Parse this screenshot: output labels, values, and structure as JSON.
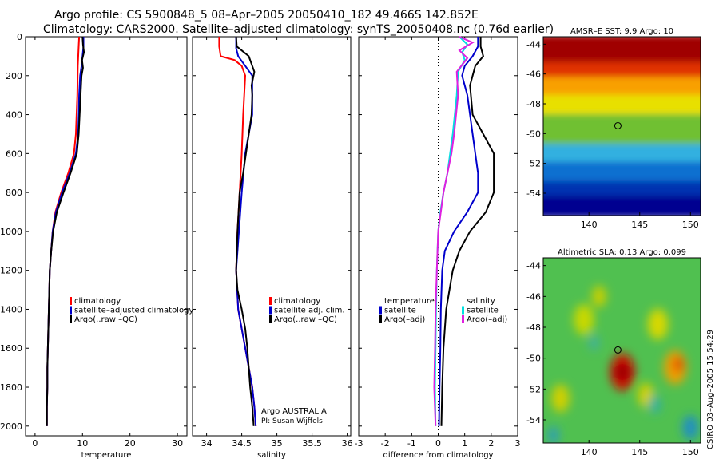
{
  "title": {
    "line1": "Argo profile: CS 5900848_5 08–Apr–2005 20050410_182 49.466S 142.852E",
    "line2": "Climatology: CARS2000. Satellite–adjusted climatology: synTS_20050408.nc (0.76d earlier)"
  },
  "colors": {
    "climatology": "#ff0000",
    "satellite": "#0000cc",
    "argo": "#000000",
    "sal_satellite": "#00e0e0",
    "sal_argo": "#e020e0",
    "zero_line": "#000000"
  },
  "credit": {
    "line1": "Argo AUSTRALIA",
    "line2": "PI: Susan Wijffels"
  },
  "timestamp": "CSIRO 03–Aug–2005 15:54:29",
  "chart_data": [
    {
      "type": "line",
      "xlabel": "temperature",
      "xlim": [
        -2,
        32
      ],
      "ylim": [
        2050,
        0
      ],
      "xticks": [
        0,
        10,
        20,
        30
      ],
      "yticks": [
        0,
        200,
        400,
        600,
        800,
        1000,
        1200,
        1400,
        1600,
        1800,
        2000
      ],
      "legend": [
        "climatology",
        "satellite–adjusted climatology",
        "Argo(..raw –QC)"
      ],
      "legend_position": "lower-right",
      "series": [
        {
          "name": "climatology",
          "color": "#ff0000",
          "points": [
            [
              9.3,
              0
            ],
            [
              9.2,
              50
            ],
            [
              9.0,
              150
            ],
            [
              8.9,
              300
            ],
            [
              8.6,
              500
            ],
            [
              8.2,
              600
            ],
            [
              7.0,
              700
            ],
            [
              5.5,
              800
            ],
            [
              4.3,
              900
            ],
            [
              3.7,
              1000
            ],
            [
              3.4,
              1100
            ],
            [
              3.1,
              1200
            ],
            [
              3.0,
              1300
            ],
            [
              2.9,
              1400
            ],
            [
              2.8,
              1500
            ],
            [
              2.7,
              1600
            ],
            [
              2.6,
              1700
            ],
            [
              2.6,
              1800
            ],
            [
              2.5,
              1900
            ],
            [
              2.5,
              2000
            ]
          ]
        },
        {
          "name": "satellite–adjusted climatology",
          "color": "#0000cc",
          "points": [
            [
              10.2,
              0
            ],
            [
              10.2,
              50
            ],
            [
              10.0,
              100
            ],
            [
              9.8,
              150
            ],
            [
              9.5,
              200
            ],
            [
              9.3,
              300
            ],
            [
              9.1,
              500
            ],
            [
              8.6,
              600
            ],
            [
              7.3,
              700
            ],
            [
              5.7,
              800
            ],
            [
              4.4,
              900
            ],
            [
              3.7,
              1000
            ],
            [
              3.4,
              1100
            ],
            [
              3.1,
              1200
            ],
            [
              3.0,
              1300
            ],
            [
              2.9,
              1400
            ],
            [
              2.8,
              1500
            ],
            [
              2.7,
              1600
            ],
            [
              2.6,
              1700
            ],
            [
              2.6,
              1800
            ],
            [
              2.5,
              1900
            ],
            [
              2.5,
              2000
            ]
          ]
        },
        {
          "name": "Argo(..raw –QC)",
          "color": "#000000",
          "points": [
            [
              10.0,
              0
            ],
            [
              10.1,
              40
            ],
            [
              10.3,
              80
            ],
            [
              9.9,
              120
            ],
            [
              10.1,
              160
            ],
            [
              9.8,
              200
            ],
            [
              9.6,
              300
            ],
            [
              9.4,
              400
            ],
            [
              9.2,
              500
            ],
            [
              8.8,
              600
            ],
            [
              7.5,
              700
            ],
            [
              6.0,
              800
            ],
            [
              4.6,
              900
            ],
            [
              3.8,
              1000
            ],
            [
              3.4,
              1100
            ],
            [
              3.1,
              1200
            ],
            [
              3.0,
              1300
            ],
            [
              2.9,
              1400
            ],
            [
              2.8,
              1500
            ],
            [
              2.7,
              1600
            ],
            [
              2.6,
              1700
            ],
            [
              2.6,
              1800
            ],
            [
              2.5,
              1900
            ],
            [
              2.5,
              2000
            ]
          ]
        }
      ]
    },
    {
      "type": "line",
      "xlabel": "salinity",
      "xlim": [
        33.8,
        36.05
      ],
      "ylim": [
        2050,
        0
      ],
      "xticks": [
        34,
        34.5,
        35,
        35.5,
        36
      ],
      "yticks": [
        0,
        200,
        400,
        600,
        800,
        1000,
        1200,
        1400,
        1600,
        1800,
        2000
      ],
      "legend": [
        "climatology",
        "satellite adj. clim.",
        "Argo(..raw –QC)"
      ],
      "legend_position": "lower-right",
      "series": [
        {
          "name": "climatology",
          "color": "#ff0000",
          "points": [
            [
              34.18,
              0
            ],
            [
              34.18,
              50
            ],
            [
              34.2,
              100
            ],
            [
              34.4,
              120
            ],
            [
              34.5,
              150
            ],
            [
              34.55,
              200
            ],
            [
              34.52,
              400
            ],
            [
              34.5,
              600
            ],
            [
              34.47,
              800
            ],
            [
              34.44,
              1000
            ],
            [
              34.42,
              1200
            ],
            [
              34.45,
              1400
            ],
            [
              34.5,
              1500
            ],
            [
              34.55,
              1600
            ],
            [
              34.6,
              1700
            ],
            [
              34.65,
              1800
            ],
            [
              34.68,
              1900
            ],
            [
              34.7,
              2000
            ]
          ]
        },
        {
          "name": "satellite adj. clim.",
          "color": "#0000cc",
          "points": [
            [
              34.42,
              0
            ],
            [
              34.42,
              60
            ],
            [
              34.45,
              100
            ],
            [
              34.55,
              150
            ],
            [
              34.65,
              200
            ],
            [
              34.65,
              400
            ],
            [
              34.6,
              500
            ],
            [
              34.55,
              600
            ],
            [
              34.5,
              800
            ],
            [
              34.46,
              1000
            ],
            [
              34.42,
              1200
            ],
            [
              34.45,
              1400
            ],
            [
              34.5,
              1500
            ],
            [
              34.55,
              1600
            ],
            [
              34.6,
              1700
            ],
            [
              34.65,
              1800
            ],
            [
              34.68,
              1900
            ],
            [
              34.7,
              2000
            ]
          ]
        },
        {
          "name": "Argo(..raw –QC)",
          "color": "#000000",
          "points": [
            [
              34.42,
              0
            ],
            [
              34.43,
              50
            ],
            [
              34.6,
              100
            ],
            [
              34.68,
              180
            ],
            [
              34.64,
              250
            ],
            [
              34.65,
              300
            ],
            [
              34.64,
              400
            ],
            [
              34.6,
              500
            ],
            [
              34.56,
              600
            ],
            [
              34.52,
              700
            ],
            [
              34.47,
              800
            ],
            [
              34.44,
              1000
            ],
            [
              34.42,
              1200
            ],
            [
              34.44,
              1300
            ],
            [
              34.5,
              1400
            ],
            [
              34.55,
              1500
            ],
            [
              34.58,
              1600
            ],
            [
              34.6,
              1700
            ],
            [
              34.62,
              1800
            ],
            [
              34.65,
              1900
            ],
            [
              34.67,
              2000
            ]
          ]
        }
      ]
    },
    {
      "type": "line",
      "xlabel": "difference from climatology",
      "xlim": [
        -3,
        3
      ],
      "ylim": [
        2050,
        0
      ],
      "xticks": [
        -3,
        -2,
        -1,
        0,
        1,
        2,
        3
      ],
      "yticks": [
        0,
        200,
        400,
        600,
        800,
        1000,
        1200,
        1400,
        1600,
        1800,
        2000
      ],
      "legend_temperature": [
        "temperature",
        "satellite",
        "Argo(–adj)"
      ],
      "legend_salinity": [
        "salinity",
        "satellite",
        "Argo(–adj)"
      ],
      "legend_position": "lower-center",
      "series": [
        {
          "name": "temperature satellite",
          "color": "#0000cc",
          "points": [
            [
              1.5,
              0
            ],
            [
              1.5,
              50
            ],
            [
              1.3,
              100
            ],
            [
              1.0,
              150
            ],
            [
              0.9,
              200
            ],
            [
              1.1,
              300
            ],
            [
              1.3,
              500
            ],
            [
              1.4,
              600
            ],
            [
              1.5,
              700
            ],
            [
              1.5,
              800
            ],
            [
              1.1,
              900
            ],
            [
              0.6,
              1000
            ],
            [
              0.25,
              1100
            ],
            [
              0.15,
              1200
            ],
            [
              0.1,
              1400
            ],
            [
              0.08,
              1600
            ],
            [
              0.05,
              1800
            ],
            [
              0.03,
              2000
            ]
          ]
        },
        {
          "name": "temperature Argo(–adj)",
          "color": "#000000",
          "points": [
            [
              1.6,
              0
            ],
            [
              1.6,
              50
            ],
            [
              1.7,
              100
            ],
            [
              1.4,
              150
            ],
            [
              1.2,
              250
            ],
            [
              1.3,
              400
            ],
            [
              1.9,
              550
            ],
            [
              2.1,
              600
            ],
            [
              2.1,
              800
            ],
            [
              1.8,
              900
            ],
            [
              1.2,
              1000
            ],
            [
              0.8,
              1100
            ],
            [
              0.55,
              1200
            ],
            [
              0.3,
              1400
            ],
            [
              0.2,
              1600
            ],
            [
              0.15,
              1800
            ],
            [
              0.12,
              2000
            ]
          ]
        },
        {
          "name": "salinity satellite",
          "color": "#00e0e0",
          "points": [
            [
              0.8,
              0
            ],
            [
              1.1,
              40
            ],
            [
              0.9,
              80
            ],
            [
              1.0,
              120
            ],
            [
              0.75,
              180
            ],
            [
              0.7,
              300
            ],
            [
              0.55,
              500
            ],
            [
              0.45,
              600
            ],
            [
              0.35,
              700
            ],
            [
              0.2,
              800
            ],
            [
              0.08,
              900
            ],
            [
              0.0,
              1000
            ],
            [
              -0.05,
              1200
            ],
            [
              -0.08,
              1400
            ],
            [
              -0.1,
              1600
            ],
            [
              -0.12,
              1800
            ],
            [
              -0.1,
              2000
            ]
          ]
        },
        {
          "name": "salinity Argo(–adj)",
          "color": "#e020e0",
          "points": [
            [
              0.8,
              0
            ],
            [
              1.3,
              30
            ],
            [
              0.8,
              70
            ],
            [
              1.1,
              110
            ],
            [
              0.7,
              180
            ],
            [
              0.75,
              300
            ],
            [
              0.6,
              500
            ],
            [
              0.5,
              600
            ],
            [
              0.35,
              700
            ],
            [
              0.2,
              800
            ],
            [
              0.1,
              900
            ],
            [
              0.0,
              1000
            ],
            [
              -0.05,
              1200
            ],
            [
              -0.1,
              1400
            ],
            [
              -0.12,
              1600
            ],
            [
              -0.15,
              1800
            ],
            [
              -0.1,
              2000
            ]
          ]
        }
      ]
    },
    {
      "type": "heatmap",
      "title": "AMSR–E SST: 9.9 Argo: 10",
      "xticks": [
        140,
        145,
        150
      ],
      "yticks": [
        -44,
        -46,
        -48,
        -50,
        -52,
        -54
      ],
      "xlim": [
        135.5,
        151
      ],
      "ylim": [
        -55.5,
        -43.5
      ],
      "argo_marker": [
        142.85,
        -49.47
      ],
      "bands": [
        {
          "lat_from": -43.5,
          "lat_to": -45.3,
          "color": "#a00000"
        },
        {
          "lat_from": -45.3,
          "lat_to": -46.3,
          "color": "#e03000"
        },
        {
          "lat_from": -46.3,
          "lat_to": -47.5,
          "color": "#f8a000"
        },
        {
          "lat_from": -47.5,
          "lat_to": -48.8,
          "color": "#e8e000"
        },
        {
          "lat_from": -48.8,
          "lat_to": -50.8,
          "color": "#70c030"
        },
        {
          "lat_from": -50.8,
          "lat_to": -52.0,
          "color": "#30b0e0"
        },
        {
          "lat_from": -52.0,
          "lat_to": -53.3,
          "color": "#1070d0"
        },
        {
          "lat_from": -53.3,
          "lat_to": -54.3,
          "color": "#0030b0"
        },
        {
          "lat_from": -54.3,
          "lat_to": -55.5,
          "color": "#000090"
        }
      ]
    },
    {
      "type": "heatmap",
      "title": "Altimetric SLA: 0.13 Argo: 0.099",
      "xticks": [
        140,
        145,
        150
      ],
      "yticks": [
        -44,
        -46,
        -48,
        -50,
        -52,
        -54
      ],
      "xlim": [
        135.5,
        151
      ],
      "ylim": [
        -55.5,
        -43.5
      ],
      "argo_marker": [
        142.85,
        -49.47
      ],
      "background_color": "#50c050",
      "blobs": [
        {
          "lon": 143.3,
          "lat": -50.9,
          "r": 1.2,
          "color": "#d01000"
        },
        {
          "lon": 143.3,
          "lat": -50.9,
          "r": 0.6,
          "color": "#900000"
        },
        {
          "lon": 148.5,
          "lat": -50.6,
          "r": 1.1,
          "color": "#f0a000"
        },
        {
          "lon": 148.8,
          "lat": -50.4,
          "r": 0.5,
          "color": "#e04000"
        },
        {
          "lon": 146.8,
          "lat": -47.8,
          "r": 1.0,
          "color": "#d8d800"
        },
        {
          "lon": 139.5,
          "lat": -47.5,
          "r": 1.0,
          "color": "#c8d800"
        },
        {
          "lon": 137.2,
          "lat": -52.6,
          "r": 0.9,
          "color": "#d0d000"
        },
        {
          "lon": 145.6,
          "lat": -52.4,
          "r": 0.8,
          "color": "#d0d000"
        },
        {
          "lon": 141.0,
          "lat": -46.0,
          "r": 0.7,
          "color": "#c8d000"
        },
        {
          "lon": 146.5,
          "lat": -53.0,
          "r": 0.6,
          "color": "#30b0a0"
        },
        {
          "lon": 150.0,
          "lat": -54.5,
          "r": 0.8,
          "color": "#2090c0"
        },
        {
          "lon": 136.5,
          "lat": -55.0,
          "r": 0.6,
          "color": "#30a0b0"
        },
        {
          "lon": 140.5,
          "lat": -49.0,
          "r": 0.5,
          "color": "#40b0a0"
        }
      ]
    }
  ]
}
